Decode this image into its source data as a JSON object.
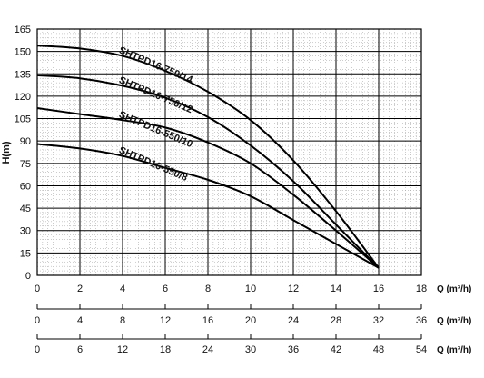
{
  "chart_data": {
    "type": "line",
    "ylabel": "H(m)",
    "ylim": [
      0,
      165
    ],
    "yticks": [
      "0",
      "15",
      "30",
      "45",
      "60",
      "75",
      "90",
      "105",
      "120",
      "135",
      "150",
      "165"
    ],
    "x_axes": [
      {
        "label": "Q (m³/h)",
        "range": [
          0,
          18
        ],
        "ticks": [
          "0",
          "2",
          "4",
          "6",
          "8",
          "10",
          "12",
          "14",
          "16",
          "18"
        ]
      },
      {
        "label": "Q (m³/h)",
        "range": [
          0,
          36
        ],
        "ticks": [
          "0",
          "4",
          "8",
          "12",
          "16",
          "20",
          "24",
          "28",
          "32",
          "36"
        ]
      },
      {
        "label": "Q (m³/h)",
        "range": [
          0,
          54
        ],
        "ticks": [
          "0",
          "6",
          "12",
          "18",
          "24",
          "30",
          "36",
          "42",
          "48",
          "54"
        ]
      }
    ],
    "grid": true,
    "series": [
      {
        "name": "SHTPD16-750/14",
        "x": [
          0,
          2,
          4,
          6,
          8,
          10,
          12,
          14,
          16
        ],
        "y": [
          154,
          152,
          147,
          137,
          123,
          104,
          77,
          43,
          5
        ]
      },
      {
        "name": "SHTPD16-750/12",
        "x": [
          0,
          2,
          4,
          6,
          8,
          10,
          12,
          14,
          16
        ],
        "y": [
          134,
          132,
          127,
          119,
          106,
          87,
          63,
          34,
          5
        ]
      },
      {
        "name": "SHTPD16-550/10",
        "x": [
          0,
          2,
          4,
          6,
          8,
          10,
          12,
          14,
          16
        ],
        "y": [
          112,
          108,
          104,
          99,
          89,
          75,
          54,
          30,
          5
        ]
      },
      {
        "name": "SHTPD16-550/8",
        "x": [
          0,
          2,
          4,
          6,
          8,
          10,
          12,
          14,
          16
        ],
        "y": [
          88,
          85,
          80,
          72,
          64,
          53,
          37,
          21,
          5
        ]
      }
    ]
  }
}
